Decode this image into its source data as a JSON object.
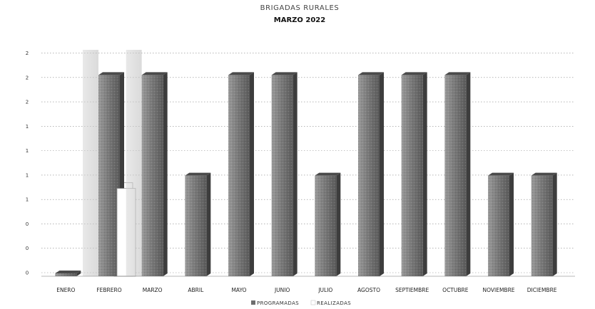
{
  "chart_data": {
    "type": "bar",
    "title": "BRIGADAS RURALES",
    "subtitle": "MARZO 2022",
    "categories": [
      "ENERO",
      "FEBRERO",
      "MARZO",
      "ABRIL",
      "MAYO",
      "JUNIO",
      "JULIO",
      "AGOSTO",
      "SEPTIEMBRE",
      "OCTUBRE",
      "NOVIEMBRE",
      "DICIEMBRE"
    ],
    "series": [
      {
        "name": "PROGRAMADAS",
        "values": [
          0,
          2,
          2,
          1,
          2,
          2,
          1,
          2,
          2,
          2,
          1,
          1
        ],
        "color": "#6e6e6e"
      },
      {
        "name": "REALIZADAS",
        "values": [
          0,
          1,
          0,
          0,
          0,
          0,
          0,
          0,
          0,
          0,
          0,
          0
        ],
        "color": "#ffffff"
      }
    ],
    "y_tick_labels": [
      "0",
      "0",
      "0",
      "1",
      "1",
      "1",
      "1",
      "2",
      "2",
      "2"
    ],
    "ylim": [
      0,
      2.25
    ],
    "grid": true,
    "legend_position": "bottom"
  }
}
